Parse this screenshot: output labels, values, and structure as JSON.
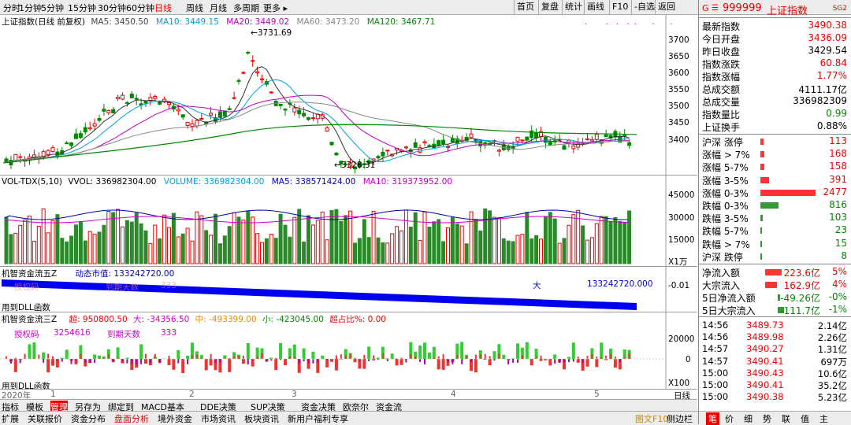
{
  "periods": [
    {
      "label": "分时"
    },
    {
      "label": "1分钟"
    },
    {
      "label": "5分钟"
    },
    {
      "label": "15分钟"
    },
    {
      "label": "30分钟"
    },
    {
      "label": "60分钟"
    },
    {
      "label": "日线",
      "active": true
    },
    {
      "label": "周线"
    },
    {
      "label": "月线"
    },
    {
      "label": "多周期"
    },
    {
      "label": "更多 ▸"
    }
  ],
  "toolbar": [
    "首页",
    "复盘",
    "统计",
    "画线",
    "F10",
    "-自选",
    "返回"
  ],
  "main_legend": {
    "title": "上证指数(日线 前复权)",
    "ma5": "MA5: 3450.50",
    "ma10": "MA10: 3449.15",
    "ma20": "MA20: 3449.02",
    "ma60": "MA60: 3473.20",
    "ma120": "MA120: 3467.71"
  },
  "annotations": {
    "high": "3731.69",
    "low": "3328.31"
  },
  "price_ticks": [
    "3700",
    "3650",
    "3600",
    "3550",
    "3500",
    "3450",
    "3400"
  ],
  "vol_legend": {
    "title": "VOL-TDX(5,10)",
    "vvol": "VVOL: 336982304.00",
    "volume": "VOLUME: 336982304.00",
    "ma5": "MA5: 338571424.00",
    "ma10": "MA10: 319373952.00"
  },
  "vol_ticks": [
    "45000",
    "30000",
    "15000"
  ],
  "vol_unit": "X1万",
  "p3": {
    "title": "机智资金流五Z",
    "dyn_label": "动态市值: 133242720.00",
    "big_label": "大",
    "big_value": "133242720.000",
    "tick": "-0.01",
    "dll": "用到DLL函数",
    "faded": "授权码",
    "faded2": "到期天数",
    "faded3": "333"
  },
  "p4": {
    "title": "机智资金流三Z",
    "chao": "超: 950800.50",
    "da": "大: -34356.50",
    "zhong": "中: -493399.00",
    "xiao": "小: -423045.00",
    "chaozhan": "超占比%: 0.00",
    "auth_label": "授权码",
    "auth_value": "3254616",
    "auth_days": "到期天数",
    "auth_num": "333",
    "ticks": [
      "20000",
      "0"
    ],
    "unit": "X100",
    "dll": "用到DLL函数"
  },
  "x_axis": {
    "year": "2020年",
    "months": [
      "1",
      "2",
      "3",
      "4",
      "5"
    ],
    "right": "日线"
  },
  "bottom_tabs1": [
    "指标",
    "模板",
    "管理",
    "另存为",
    "绑定到",
    "MACD基本",
    "DDE决策",
    "SUP决策",
    "资金决策",
    "欧奈尔",
    "资金流"
  ],
  "bottom_tabs2": [
    "扩展",
    "关联报价",
    "资金分布",
    "盘面分析",
    "境外资金",
    "市场资讯",
    "板块资讯",
    "新用户福利专享"
  ],
  "bottom_right": {
    "f10": "图文F10",
    "side": "侧边栏",
    "tabs": [
      "笔",
      "价",
      "细",
      "势",
      "联",
      "值",
      "主"
    ]
  },
  "quote": {
    "code": "999999",
    "name": "上证指数",
    "tag": "SG2",
    "g": "G",
    "rows": [
      {
        "label": "最新指数",
        "value": "3490.38",
        "color": "red"
      },
      {
        "label": "今日开盘",
        "value": "3436.09",
        "color": "red"
      },
      {
        "label": "昨日收盘",
        "value": "3429.54",
        "color": "black"
      },
      {
        "label": "指数涨跌",
        "value": "60.84",
        "color": "red"
      },
      {
        "label": "指数涨幅",
        "value": "1.77%",
        "color": "red"
      },
      {
        "label": "总成交额",
        "value": "4111.17亿",
        "color": "black"
      },
      {
        "label": "总成交量",
        "value": "336982309",
        "color": "black"
      },
      {
        "label": "指数量比",
        "value": "0.99",
        "color": "green"
      },
      {
        "label": "上证换手",
        "value": "0.88%",
        "color": "black"
      }
    ]
  },
  "breadth": [
    {
      "label": "沪深 涨停",
      "value": "113",
      "color": "red",
      "bar": 0.05
    },
    {
      "label": "涨幅 > 7%",
      "value": "168",
      "color": "red",
      "bar": 0.07
    },
    {
      "label": "涨幅 5-7%",
      "value": "158",
      "color": "red",
      "bar": 0.065
    },
    {
      "label": "涨幅 3-5%",
      "value": "391",
      "color": "red",
      "bar": 0.16
    },
    {
      "label": "涨幅 0-3%",
      "value": "2477",
      "color": "red",
      "bar": 1.0
    },
    {
      "label": "跌幅 0-3%",
      "value": "816",
      "color": "green",
      "bar": 0.33
    },
    {
      "label": "跌幅 3-5%",
      "value": "103",
      "color": "green",
      "bar": 0.04
    },
    {
      "label": "跌幅 5-7%",
      "value": "23",
      "color": "green",
      "bar": 0.01
    },
    {
      "label": "跌幅 > 7%",
      "value": "15",
      "color": "green",
      "bar": 0.008
    },
    {
      "label": "沪深 跌停",
      "value": "8",
      "color": "green",
      "bar": 0.005
    }
  ],
  "flows": [
    {
      "label": "净流入额",
      "value": "223.6亿",
      "pct": "5%",
      "color": "red",
      "bar": 0.7
    },
    {
      "label": "大宗流入",
      "value": "162.9亿",
      "pct": "4%",
      "color": "red",
      "bar": 0.5
    },
    {
      "label": "5日净流入额",
      "value": "-49.26亿",
      "pct": "-0%",
      "color": "green",
      "bar": 0.1
    },
    {
      "label": "5日大宗流入",
      "value": "-111.7亿",
      "pct": "-1%",
      "color": "green",
      "bar": 0.25
    }
  ],
  "ticks": [
    {
      "time": "14:56",
      "price": "3489.73",
      "vol": "2.14亿"
    },
    {
      "time": "14:56",
      "price": "3489.98",
      "vol": "2.26亿"
    },
    {
      "time": "14:57",
      "price": "3490.27",
      "vol": "1.31亿"
    },
    {
      "time": "14:57",
      "price": "3490.41",
      "vol": "697万"
    },
    {
      "time": "15:00",
      "price": "3490.43",
      "vol": "10.6亿"
    },
    {
      "time": "15:00",
      "price": "3490.41",
      "vol": "35.2亿"
    },
    {
      "time": "15:00",
      "price": "3490.38",
      "vol": "5.23亿"
    }
  ]
}
